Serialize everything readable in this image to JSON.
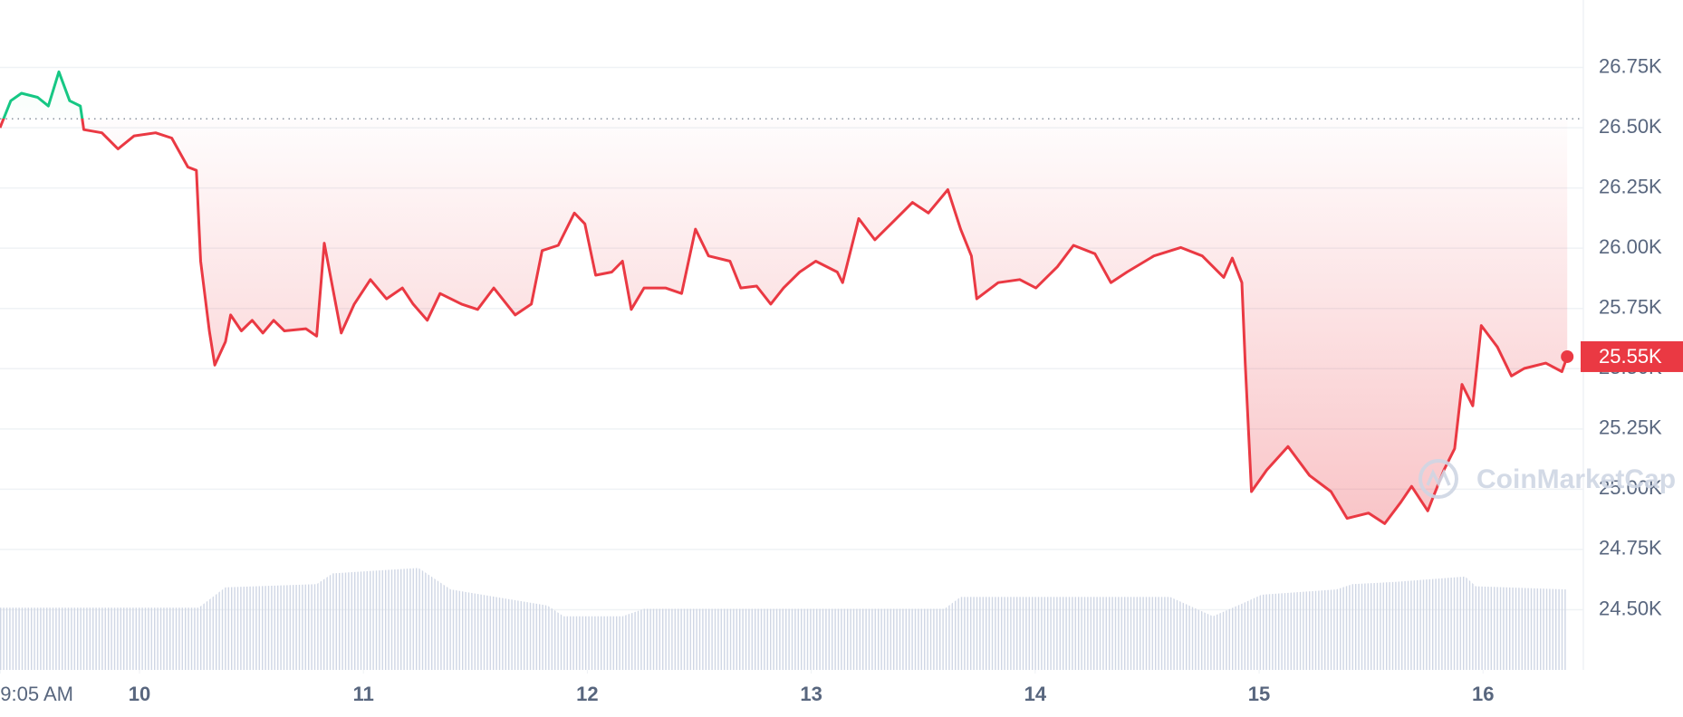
{
  "chart_data": {
    "type": "line",
    "watermark": "CoinMarketCap",
    "x": [
      9.377,
      9.425,
      9.473,
      9.545,
      9.593,
      9.64,
      9.688,
      9.736,
      9.751,
      9.832,
      9.904,
      9.976,
      10.072,
      10.144,
      10.216,
      10.254,
      10.273,
      10.312,
      10.336,
      10.384,
      10.407,
      10.455,
      10.503,
      10.551,
      10.599,
      10.647,
      10.743,
      10.791,
      10.825,
      10.863,
      10.901,
      10.959,
      11.031,
      11.103,
      11.174,
      11.222,
      11.285,
      11.342,
      11.438,
      11.51,
      11.582,
      11.678,
      11.75,
      11.798,
      11.87,
      11.942,
      11.989,
      12.037,
      12.109,
      12.157,
      12.196,
      12.253,
      12.349,
      12.421,
      12.483,
      12.541,
      12.637,
      12.685,
      12.756,
      12.819,
      12.876,
      12.948,
      13.02,
      13.116,
      13.14,
      13.212,
      13.284,
      13.356,
      13.452,
      13.523,
      13.61,
      13.667,
      13.715,
      13.739,
      13.835,
      13.931,
      14.003,
      14.099,
      14.171,
      14.267,
      14.338,
      14.41,
      14.53,
      14.65,
      14.746,
      14.842,
      14.88,
      14.923,
      14.938,
      14.966,
      15.034,
      15.129,
      15.225,
      15.321,
      15.393,
      15.489,
      15.561,
      15.633,
      15.681,
      15.753,
      15.825,
      15.873,
      15.906,
      15.954,
      15.992,
      16.064,
      16.127,
      16.184,
      16.28,
      16.352,
      16.376
    ],
    "values": [
      26500,
      26612,
      26643,
      26626,
      26590,
      26732,
      26612,
      26590,
      26492,
      26479,
      26412,
      26466,
      26479,
      26457,
      26337,
      26323,
      25946,
      25657,
      25515,
      25612,
      25723,
      25657,
      25701,
      25648,
      25701,
      25657,
      25666,
      25635,
      26021,
      25835,
      25648,
      25768,
      25870,
      25790,
      25835,
      25768,
      25701,
      25812,
      25768,
      25746,
      25835,
      25723,
      25768,
      25990,
      26012,
      26146,
      26101,
      25888,
      25901,
      25946,
      25746,
      25835,
      25835,
      25812,
      26079,
      25968,
      25946,
      25835,
      25843,
      25768,
      25835,
      25901,
      25946,
      25901,
      25857,
      26123,
      26035,
      26101,
      26190,
      26146,
      26243,
      26079,
      25968,
      25790,
      25857,
      25870,
      25835,
      25923,
      26012,
      25977,
      25857,
      25901,
      25968,
      26003,
      25968,
      25879,
      25959,
      25857,
      25523,
      24990,
      25079,
      25177,
      25057,
      24990,
      24879,
      24901,
      24857,
      24946,
      25012,
      24910,
      25079,
      25168,
      25435,
      25346,
      25679,
      25590,
      25470,
      25501,
      25523,
      25488,
      25550
    ],
    "last_value_label": "25.55K",
    "baseline": 26537,
    "color_up": "#16c784",
    "color_down": "#ea3943",
    "xlim": [
      9.377,
      16.448
    ],
    "xticks": [
      {
        "value": 9.378,
        "label": "9:05 AM"
      },
      10,
      11,
      12,
      13,
      14,
      15,
      16
    ],
    "ylim": [
      24250,
      27030
    ],
    "yticks": [
      {
        "value": 24500,
        "label": "24.50K"
      },
      {
        "value": 24750,
        "label": "24.75K"
      },
      {
        "value": 25000,
        "label": "25.00K"
      },
      {
        "value": 25250,
        "label": "25.25K"
      },
      {
        "value": 25500,
        "label": "25.50K"
      },
      {
        "value": 25750,
        "label": "25.75K"
      },
      {
        "value": 26000,
        "label": "26.00K"
      },
      {
        "value": 26250,
        "label": "26.25K"
      },
      {
        "value": 26500,
        "label": "26.50K"
      },
      {
        "value": 26750,
        "label": "26.75K"
      }
    ],
    "grid": true,
    "volume": {
      "color": "#cfd6e4",
      "ylim": [
        0,
        100
      ],
      "x": [
        9.377,
        10.264,
        10.384,
        10.791,
        10.863,
        11.246,
        11.39,
        11.822,
        11.894,
        12.157,
        12.253,
        13.595,
        13.667,
        14.602,
        14.794,
        14.938,
        15.01,
        15.345,
        15.417,
        15.609,
        15.92,
        15.968,
        16.376
      ],
      "values": [
        58,
        58,
        77,
        80,
        90,
        95,
        75,
        60,
        50,
        50,
        57,
        57,
        68,
        68,
        50,
        63,
        70,
        75,
        80,
        82,
        87,
        78,
        75
      ]
    }
  }
}
